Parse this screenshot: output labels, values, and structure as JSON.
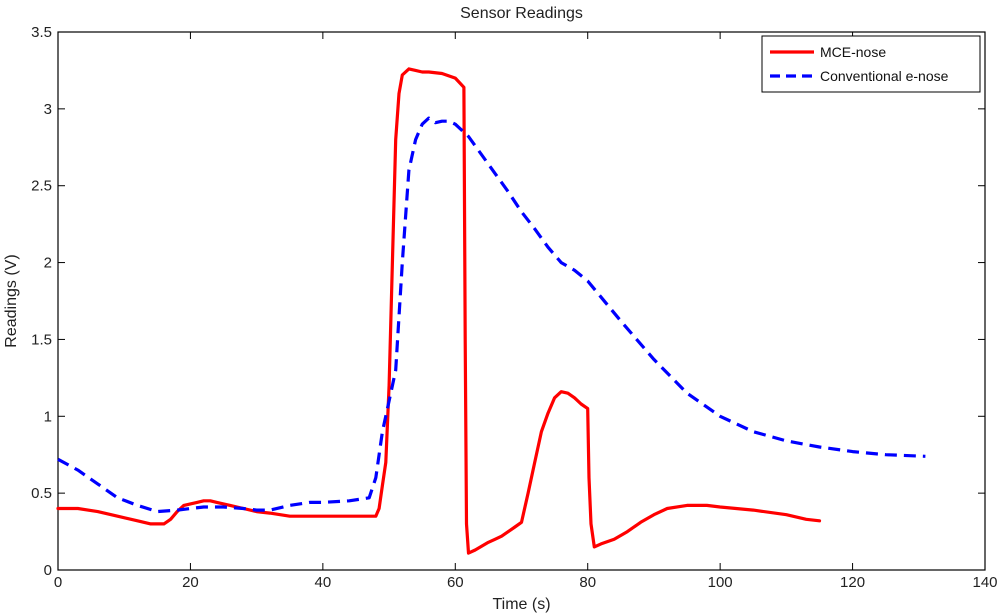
{
  "chart_data": {
    "type": "line",
    "title": "Sensor Readings",
    "xlabel": "Time (s)",
    "ylabel": "Readings (V)",
    "xlim": [
      0,
      140
    ],
    "ylim": [
      0,
      3.5
    ],
    "xticks": [
      0,
      20,
      40,
      60,
      80,
      100,
      120,
      140
    ],
    "yticks": [
      0,
      0.5,
      1,
      1.5,
      2,
      2.5,
      3,
      3.5
    ],
    "xtick_labels": [
      "0",
      "20",
      "40",
      "60",
      "80",
      "100",
      "120",
      "140"
    ],
    "ytick_labels": [
      "0",
      "0.5",
      "1",
      "1.5",
      "2",
      "2.5",
      "3",
      "3.5"
    ],
    "grid": false,
    "legend_position": "top-right",
    "series": [
      {
        "name": "MCE-nose",
        "color": "#ff0000",
        "style": "solid",
        "x": [
          0,
          3,
          6,
          9,
          12,
          14,
          15,
          16,
          17,
          18,
          19,
          20,
          21,
          22,
          23,
          24,
          25,
          26,
          28,
          30,
          32,
          35,
          38,
          40,
          43,
          45,
          46,
          47,
          48,
          48.5,
          49,
          49.5,
          50,
          50.5,
          51,
          51.5,
          52,
          53,
          54,
          55,
          56,
          58,
          60,
          61.3,
          61.5,
          61.7,
          62,
          63,
          65,
          66,
          67,
          68,
          69,
          70,
          71,
          72,
          73,
          74,
          75,
          76,
          77,
          78,
          79,
          80,
          80.2,
          80.5,
          81,
          82,
          84,
          86,
          88,
          90,
          92,
          95,
          98,
          100,
          105,
          110,
          113,
          115
        ],
        "y": [
          0.4,
          0.4,
          0.38,
          0.35,
          0.32,
          0.3,
          0.3,
          0.3,
          0.33,
          0.38,
          0.42,
          0.43,
          0.44,
          0.45,
          0.45,
          0.44,
          0.43,
          0.42,
          0.4,
          0.38,
          0.37,
          0.35,
          0.35,
          0.35,
          0.35,
          0.35,
          0.35,
          0.35,
          0.35,
          0.4,
          0.55,
          0.7,
          1.2,
          2.0,
          2.8,
          3.1,
          3.22,
          3.26,
          3.25,
          3.24,
          3.24,
          3.23,
          3.2,
          3.14,
          1.5,
          0.3,
          0.11,
          0.13,
          0.18,
          0.2,
          0.22,
          0.25,
          0.28,
          0.31,
          0.5,
          0.7,
          0.9,
          1.02,
          1.12,
          1.16,
          1.15,
          1.12,
          1.08,
          1.05,
          0.6,
          0.3,
          0.15,
          0.17,
          0.2,
          0.25,
          0.31,
          0.36,
          0.4,
          0.42,
          0.42,
          0.41,
          0.39,
          0.36,
          0.33,
          0.32
        ]
      },
      {
        "name": "Conventional e-nose",
        "color": "#0000ff",
        "style": "dashed",
        "x": [
          0,
          3,
          6,
          9,
          12,
          15,
          18,
          20,
          22,
          25,
          28,
          30,
          32,
          35,
          38,
          40,
          44,
          47,
          48,
          49,
          50,
          51,
          52,
          53,
          54,
          55,
          56,
          57,
          58,
          59,
          60,
          62,
          64,
          66,
          68,
          70,
          72,
          74,
          76,
          78,
          80,
          85,
          90,
          95,
          100,
          105,
          110,
          115,
          120,
          125,
          131
        ],
        "y": [
          0.72,
          0.65,
          0.56,
          0.47,
          0.42,
          0.38,
          0.39,
          0.4,
          0.41,
          0.41,
          0.4,
          0.39,
          0.39,
          0.42,
          0.44,
          0.44,
          0.45,
          0.47,
          0.6,
          0.9,
          1.1,
          1.3,
          2.0,
          2.6,
          2.8,
          2.9,
          2.94,
          2.91,
          2.92,
          2.92,
          2.9,
          2.82,
          2.7,
          2.58,
          2.46,
          2.33,
          2.22,
          2.1,
          2.0,
          1.95,
          1.88,
          1.62,
          1.37,
          1.15,
          1.0,
          0.9,
          0.84,
          0.8,
          0.77,
          0.75,
          0.74
        ]
      }
    ]
  }
}
